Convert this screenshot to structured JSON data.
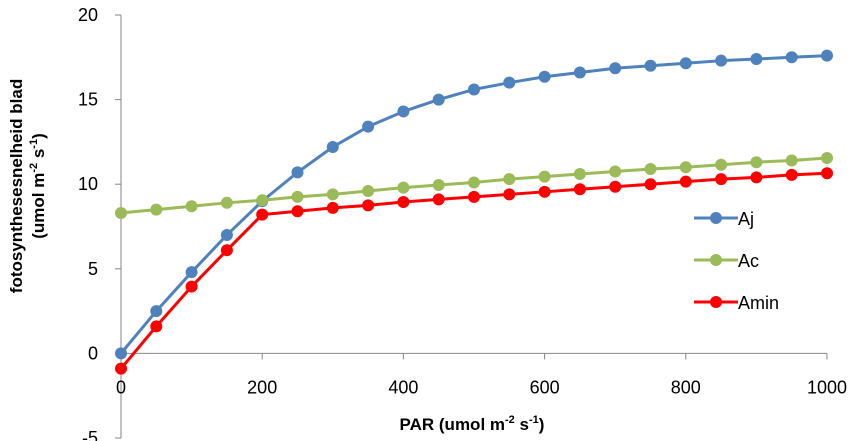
{
  "chart_data": {
    "type": "line",
    "x": [
      0,
      50,
      100,
      150,
      200,
      250,
      300,
      350,
      400,
      450,
      500,
      550,
      600,
      650,
      700,
      750,
      800,
      850,
      900,
      950,
      1000
    ],
    "series": [
      {
        "name": "Aj",
        "color": "#4F81BD",
        "values": [
          0,
          2.5,
          4.8,
          7.0,
          9.0,
          10.7,
          12.2,
          13.4,
          14.3,
          15.0,
          15.6,
          16.0,
          16.35,
          16.6,
          16.85,
          17.0,
          17.15,
          17.3,
          17.4,
          17.5,
          17.6
        ]
      },
      {
        "name": "Ac",
        "color": "#9BBB59",
        "values": [
          8.3,
          8.5,
          8.7,
          8.9,
          9.05,
          9.25,
          9.4,
          9.6,
          9.8,
          9.95,
          10.1,
          10.3,
          10.45,
          10.6,
          10.75,
          10.9,
          11.0,
          11.15,
          11.3,
          11.4,
          11.55
        ]
      },
      {
        "name": "Amin",
        "color": "#FF0000",
        "values": [
          -0.9,
          1.6,
          3.95,
          6.1,
          8.2,
          8.4,
          8.6,
          8.75,
          8.95,
          9.1,
          9.25,
          9.4,
          9.55,
          9.7,
          9.85,
          10.0,
          10.15,
          10.3,
          10.4,
          10.55,
          10.65
        ]
      }
    ],
    "xlabel_main": "PAR (umol m",
    "xlabel_sup1": "-2",
    "xlabel_mid": " s",
    "xlabel_sup2": "-1",
    "xlabel_end": ")",
    "ylabel_line1": "fotosynthesesnelheid blad",
    "ylabel_line2_main": "(umol m",
    "ylabel_line2_sup1": "-2",
    "ylabel_line2_mid": " s",
    "ylabel_line2_sup2": "-1",
    "ylabel_line2_end": ")",
    "xlim": [
      0,
      1000
    ],
    "ylim": [
      -5,
      20
    ],
    "x_ticks": [
      "0",
      "200",
      "400",
      "600",
      "800",
      "1000"
    ],
    "y_ticks": [
      "-5",
      "0",
      "5",
      "10",
      "15",
      "20"
    ],
    "grid": false,
    "legend_position": "right"
  }
}
